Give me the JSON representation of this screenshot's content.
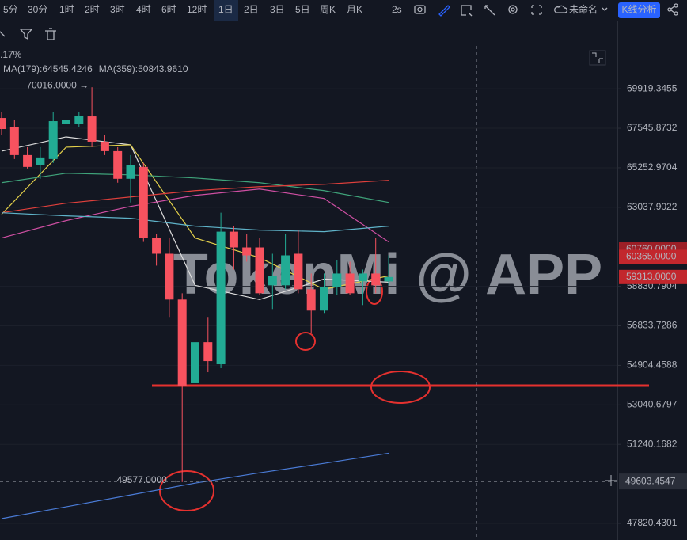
{
  "toolbar": {
    "intervals": [
      "5分",
      "30分",
      "1时",
      "2时",
      "3时",
      "4时",
      "6时",
      "12时",
      "1日",
      "2日",
      "3日",
      "5日",
      "周K",
      "月K"
    ],
    "active": 8,
    "refresh": "2s",
    "layout_name": "未命名",
    "analysis": "K线分析"
  },
  "chart_data": {
    "type": "candlestick",
    "categories": [
      null,
      null,
      null,
      null,
      null,
      null,
      null,
      null,
      null,
      null,
      null,
      null,
      null,
      null,
      null,
      null,
      null,
      null,
      null,
      null,
      null,
      null,
      null,
      null,
      null,
      null,
      null,
      null,
      null,
      null,
      null
    ],
    "open": [
      68156,
      67595,
      65982,
      65393,
      65755,
      67828,
      67828,
      68251,
      66760,
      66210,
      64630,
      65302,
      61371,
      60530,
      58155,
      54054,
      56028,
      54957,
      61710,
      60865,
      60865,
      58882,
      58882,
      60530,
      58679,
      57596,
      58801,
      59494,
      59085,
      59494,
      59085
    ],
    "high": [
      68534,
      68063,
      66439,
      66439,
      68534,
      69009,
      68534,
      70016,
      67130,
      66439,
      65982,
      65528,
      61583,
      61371,
      58477,
      56105,
      57279,
      62740,
      62009,
      61583,
      61371,
      60530,
      61583,
      61795,
      59494,
      59494,
      60197,
      60114,
      59700,
      61371,
      60446
    ],
    "low": [
      67130,
      65755,
      65212,
      64630,
      65528,
      67362,
      67595,
      66439,
      65982,
      64408,
      63306,
      61159,
      59907,
      57279,
      49577,
      54016,
      54578,
      54767,
      59700,
      60114,
      58396,
      57675,
      58679,
      58477,
      56494,
      57477,
      58396,
      58396,
      57875,
      58477,
      58882
    ],
    "close": [
      67501,
      65982,
      65302,
      65846,
      67969,
      68063,
      68298,
      66760,
      66210,
      64630,
      65393,
      61371,
      60530,
      58155,
      53942,
      56028,
      55108,
      61710,
      60865,
      60446,
      58477,
      59372,
      60446,
      58679,
      57596,
      58801,
      59494,
      58477,
      59494,
      58882,
      59313
    ],
    "up_color": "#22ab94",
    "down_color": "#f7525f",
    "series": [
      {
        "color": "#dcdcdc",
        "x": [
          0,
          5,
          10,
          15,
          20,
          25,
          30
        ],
        "values": [
          66210,
          67037,
          66576,
          58882,
          58155,
          59207,
          59044
        ]
      },
      {
        "color": "#e3d04a",
        "x": [
          0,
          5,
          10,
          15,
          20,
          25,
          30
        ],
        "values": [
          62655,
          66439,
          66576,
          61371,
          60321,
          58679,
          59372
        ]
      },
      {
        "color": "#3fa37a",
        "x": [
          0,
          5,
          10,
          15,
          20,
          25,
          30
        ],
        "values": [
          64408,
          64943,
          64854,
          64675,
          64408,
          63964,
          63306
        ]
      },
      {
        "name": "MA(179):64545.4246",
        "color": "#e0403c",
        "x": [
          0,
          5,
          10,
          15,
          20,
          25,
          30
        ],
        "values": [
          62740,
          63262,
          63612,
          63964,
          64186,
          64319,
          64545.4246
        ]
      },
      {
        "color": "#cf4fa3",
        "x": [
          0,
          5,
          10,
          15,
          20,
          25,
          30
        ],
        "values": [
          61371,
          62310,
          63089,
          63700,
          64053,
          63525,
          61159
        ]
      },
      {
        "color": "#5fb3c9",
        "x": [
          0,
          5,
          10,
          15,
          20,
          25,
          30
        ],
        "values": [
          62740,
          62568,
          62439,
          62009,
          61795,
          61710,
          62009
        ]
      },
      {
        "name": "MA(359):50843.9610",
        "color": "#4a7bd6",
        "x": [
          0,
          5,
          10,
          15,
          20,
          25,
          30
        ],
        "values": [
          48019,
          48518,
          49023,
          49533,
          49980,
          50396,
          50843.961
        ]
      }
    ],
    "ylim": [
      47130,
      72590
    ],
    "log_scale": true,
    "grid": true,
    "yticks": [
      69919.3455,
      67545.8732,
      65252.9704,
      63037.9022,
      58830.7904,
      56833.7286,
      54904.4588,
      53040.6797,
      51240.1682,
      47820.4301
    ],
    "price_tags": [
      {
        "value": 60760,
        "label": "60760.0000",
        "color": "#9c1f26"
      },
      {
        "value": 60365,
        "label": "60365.0000",
        "color": "#c2272d"
      },
      {
        "value": 59313,
        "label": "59313.0000",
        "color": "#c2272d"
      }
    ],
    "crosshair": {
      "value": 49603.4547,
      "label": "49603.4547"
    },
    "annotations": [
      {
        "index": 7,
        "value": 70016,
        "label": "70016.0000 →"
      },
      {
        "index": 14,
        "value": 49577,
        "label": "49577.0000 →"
      }
    ],
    "change_text": ".17%",
    "watermark": "TokenMi @ APP"
  }
}
